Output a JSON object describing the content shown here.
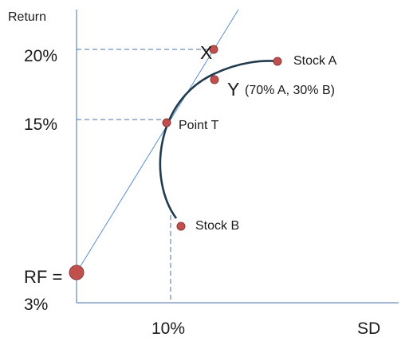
{
  "axis": {
    "y_title": "Return",
    "x_title": "SD",
    "y_ticks": {
      "twenty": "20%",
      "fifteen": "15%",
      "rf_line1": "RF =",
      "rf_line2": "3%"
    },
    "x_ticks": {
      "ten": "10%"
    }
  },
  "points": {
    "x_label": "X",
    "stock_a": "Stock A",
    "y_label": "Y",
    "y_desc": "(70% A, 30% B)",
    "point_t": "Point T",
    "stock_b": "Stock B"
  },
  "colors": {
    "axis": "#4a72a8",
    "guide": "#4a72a8",
    "cal_line": "#5b8dcc",
    "frontier": "#1f3b4d",
    "marker_fill": "#c0504d",
    "marker_stroke": "#8e3a37",
    "text": "#1a1a1a"
  }
}
